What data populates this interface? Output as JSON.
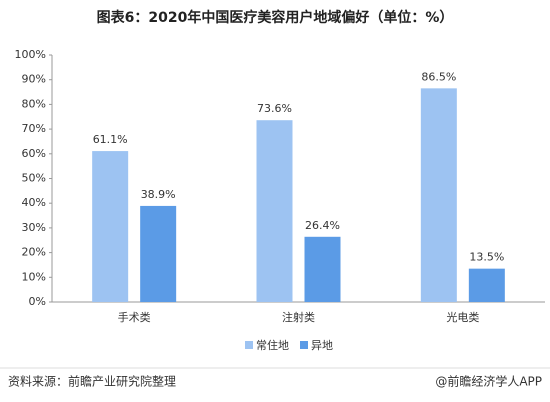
{
  "chart_data": {
    "type": "bar",
    "title": "图表6：2020年中国医疗美容用户地域偏好（单位：%）",
    "categories": [
      "手术类",
      "注射类",
      "光电类"
    ],
    "series": [
      {
        "name": "常住地",
        "color": "#9dc3f2",
        "values": [
          61.1,
          73.6,
          86.5
        ],
        "value_labels": [
          "61.1%",
          "73.6%",
          "86.5%"
        ]
      },
      {
        "name": "异地",
        "color": "#5b9be6",
        "values": [
          38.9,
          26.4,
          13.5
        ],
        "value_labels": [
          "38.9%",
          "26.4%",
          "13.5%"
        ]
      }
    ],
    "ylim": [
      0,
      100
    ],
    "yticks": [
      {
        "value": 0,
        "label": "0%"
      },
      {
        "value": 10,
        "label": "10%"
      },
      {
        "value": 20,
        "label": "20%"
      },
      {
        "value": 30,
        "label": "30%"
      },
      {
        "value": 40,
        "label": "40%"
      },
      {
        "value": 50,
        "label": "50%"
      },
      {
        "value": 60,
        "label": "60%"
      },
      {
        "value": 70,
        "label": "70%"
      },
      {
        "value": 80,
        "label": "80%"
      },
      {
        "value": 90,
        "label": "90%"
      },
      {
        "value": 100,
        "label": "100%"
      }
    ],
    "legend": "bottom",
    "source": "资料来源：前瞻产业研究院整理",
    "credit": "@前瞻经济学人APP"
  }
}
